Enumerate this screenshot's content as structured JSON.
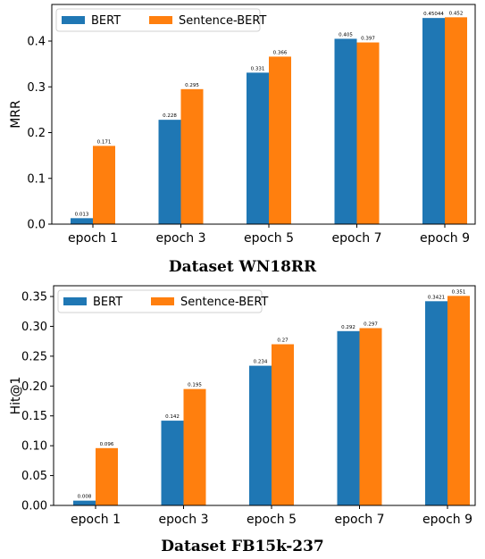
{
  "colors": {
    "bert": "#1f77b4",
    "sentence_bert": "#ff7f0e"
  },
  "captions": [
    "Dataset WN18RR",
    "Dataset FB15k-237"
  ],
  "chart_data": [
    {
      "type": "bar",
      "title": "",
      "xlabel": "",
      "ylabel": "MRR",
      "categories": [
        "epoch 1",
        "epoch 3",
        "epoch 5",
        "epoch 7",
        "epoch 9"
      ],
      "ylim": [
        0,
        0.48
      ],
      "yticks": [
        "0.0",
        "0.1",
        "0.2",
        "0.3",
        "0.4"
      ],
      "legend_position": "top-left",
      "grid": false,
      "series": [
        {
          "name": "BERT",
          "values": [
            0.013,
            0.228,
            0.331,
            0.405,
            0.45044
          ],
          "labels": [
            "0.013",
            "0.228",
            "0.331",
            "0.405",
            "0.45044"
          ]
        },
        {
          "name": "Sentence-BERT",
          "values": [
            0.171,
            0.295,
            0.366,
            0.397,
            0.452
          ],
          "labels": [
            "0.171",
            "0.295",
            "0.366",
            "0.397",
            "0.452"
          ]
        }
      ]
    },
    {
      "type": "bar",
      "title": "",
      "xlabel": "",
      "ylabel": "Hit@1",
      "categories": [
        "epoch 1",
        "epoch 3",
        "epoch 5",
        "epoch 7",
        "epoch 9"
      ],
      "ylim": [
        0,
        0.368
      ],
      "yticks": [
        "0.00",
        "0.05",
        "0.10",
        "0.15",
        "0.20",
        "0.25",
        "0.30",
        "0.35"
      ],
      "legend_position": "top-left",
      "grid": false,
      "series": [
        {
          "name": "BERT",
          "values": [
            0.008,
            0.142,
            0.234,
            0.292,
            0.3421
          ],
          "labels": [
            "0.008",
            "0.142",
            "0.234",
            "0.292",
            "0.3421"
          ]
        },
        {
          "name": "Sentence-BERT",
          "values": [
            0.096,
            0.195,
            0.27,
            0.297,
            0.351
          ],
          "labels": [
            "0.096",
            "0.195",
            "0.27",
            "0.297",
            "0.351"
          ]
        }
      ]
    }
  ]
}
